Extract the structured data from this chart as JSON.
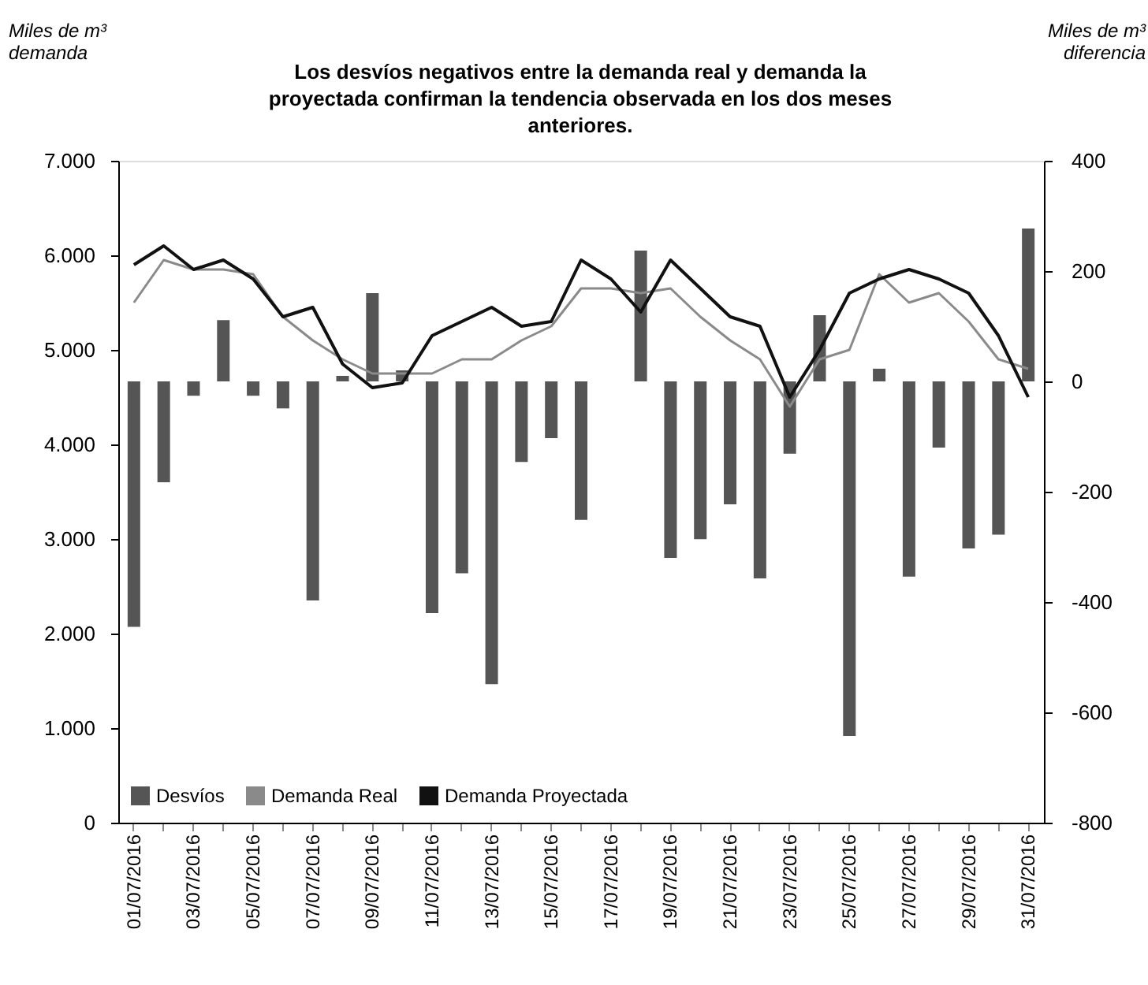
{
  "chart_data": {
    "type": "bar",
    "title": [
      "Los desvíos negativos entre la demanda real y demanda la",
      "proyectada confirman la tendencia observada en los dos meses",
      "anteriores."
    ],
    "ylabel": "Miles de m³ demanda",
    "y2label": "Miles de m³ diferencia",
    "categories": [
      "01/07/2016",
      null,
      "03/07/2016",
      null,
      "05/07/2016",
      null,
      "07/07/2016",
      null,
      "09/07/2016",
      null,
      "11/07/2016",
      null,
      "13/07/2016",
      null,
      "15/07/2016",
      null,
      "17/07/2016",
      null,
      "19/07/2016",
      null,
      "21/07/2016",
      null,
      "23/07/2016",
      null,
      "25/07/2016",
      null,
      "27/07/2016",
      null,
      "29/07/2016",
      null,
      "31/07/2016"
    ],
    "series": [
      {
        "name": "Desvíos",
        "type": "bar",
        "axis": "y2",
        "color": "#555555",
        "values": [
          -445,
          -183,
          -26,
          111,
          -26,
          -49,
          -397,
          10,
          160,
          20,
          -420,
          -348,
          -549,
          -146,
          -103,
          -251,
          0,
          237,
          -320,
          -286,
          -223,
          -357,
          -131,
          120,
          -643,
          23,
          -354,
          -120,
          -303,
          -278,
          277
        ]
      },
      {
        "name": "Demanda Real",
        "type": "line",
        "color": "#8a8a8a",
        "values": [
          5500,
          5950,
          5850,
          5850,
          5800,
          5350,
          5100,
          4900,
          4750,
          4750,
          4750,
          4900,
          4900,
          5100,
          5250,
          5650,
          5650,
          5600,
          5650,
          5350,
          5100,
          4900,
          4400,
          4900,
          5000,
          5800,
          5500,
          5600,
          5300,
          4900,
          4800
        ]
      },
      {
        "name": "Demanda Proyectada",
        "type": "line",
        "color": "#111111",
        "values": [
          5900,
          6100,
          5850,
          5950,
          5750,
          5350,
          5450,
          4850,
          4600,
          4650,
          5150,
          5300,
          5450,
          5250,
          5300,
          5950,
          5750,
          5400,
          5950,
          5650,
          5350,
          5250,
          4500,
          5000,
          5600,
          5750,
          5850,
          5750,
          5600,
          5150,
          4500
        ]
      }
    ],
    "ylim": [
      0,
      7000
    ],
    "yticks": [
      0,
      {
        "value": 1000,
        "label": "1.000"
      },
      {
        "value": 2000,
        "label": "2.000"
      },
      {
        "value": 3000,
        "label": "3.000"
      },
      {
        "value": 4000,
        "label": "4.000"
      },
      {
        "value": 5000,
        "label": "5.000"
      },
      {
        "value": 6000,
        "label": "6.000"
      },
      {
        "value": 7000,
        "label": "7.000"
      }
    ],
    "y2lim": [
      -800,
      400
    ],
    "y2ticks": [
      -800,
      -600,
      -400,
      -200,
      0,
      200,
      400
    ],
    "legend": "bottom left",
    "grid": false,
    "line_style": "solid",
    "marker": "none"
  }
}
